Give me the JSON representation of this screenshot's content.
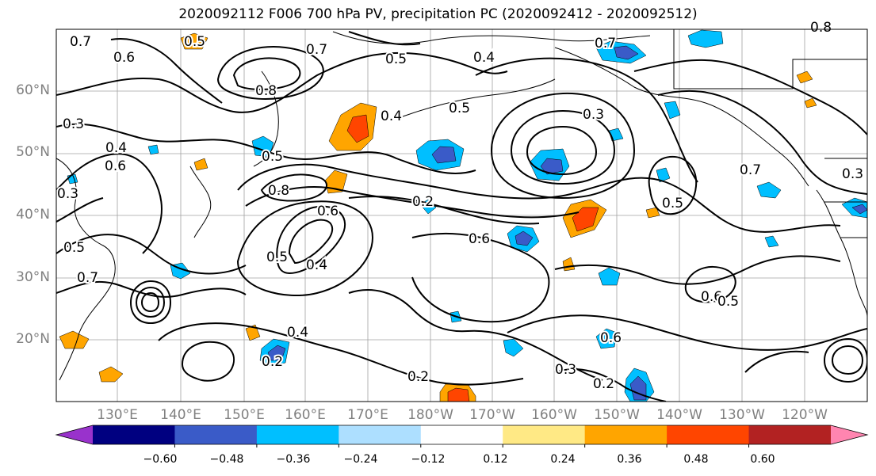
{
  "title": "2020092112 F006 700 hPa PV, precipitation PC (2020092412 - 2020092512)",
  "lat_labels": [
    "60°N",
    "50°N",
    "40°N",
    "30°N",
    "20°N"
  ],
  "lon_labels": [
    "130°E",
    "140°E",
    "150°E",
    "160°E",
    "170°E",
    "180°W",
    "170°W",
    "160°W",
    "150°W",
    "140°W",
    "130°W",
    "120°W"
  ],
  "contour_labels": [
    "0.7",
    "0.5",
    "0.6",
    "0.7",
    "0.8",
    "0.4",
    "0.5",
    "0.3",
    "0.4",
    "0.6",
    "0.5",
    "0.8",
    "0.6",
    "0.2",
    "0.6",
    "0.5",
    "0.4",
    "0.3",
    "0.5",
    "0.7",
    "0.4",
    "0.2",
    "0.3",
    "0.2",
    "0.6",
    "0.5",
    "0.4",
    "0.3",
    "0.7",
    "0.8",
    "0.5",
    "0.6",
    "0.5",
    "0.7",
    "0.3",
    "0.2"
  ],
  "colorbar": {
    "tick_labels": [
      "−0.60",
      "−0.48",
      "−0.36",
      "−0.24",
      "−0.12",
      "0.12",
      "0.24",
      "0.36",
      "0.48",
      "0.60"
    ],
    "colors": [
      "#9932CC",
      "#000080",
      "#3A5BC8",
      "#00BFFF",
      "#ADDFFF",
      "#FFFFFF",
      "#FFE985",
      "#FFA500",
      "#FF4500",
      "#B22222",
      "#FF85B0"
    ]
  }
}
